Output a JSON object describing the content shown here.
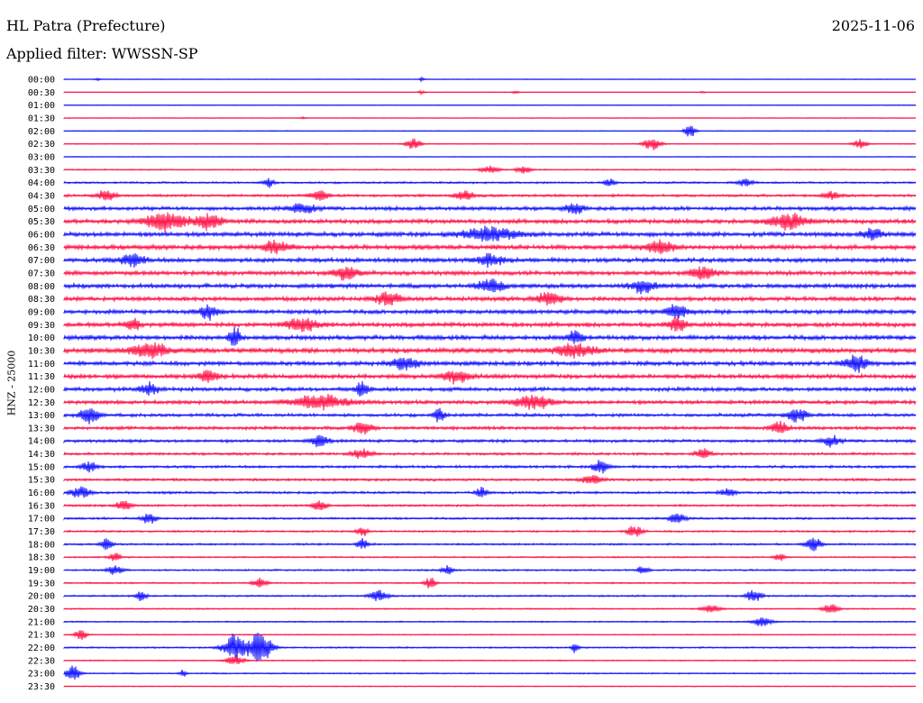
{
  "header": {
    "station": "HL Patra (Prefecture)",
    "date": "2025-11-06",
    "filter": "Applied filter: WWSSN-SP"
  },
  "chart_data": {
    "type": "line",
    "title": "HL Patra (Prefecture)",
    "ylabel": "HNZ - 25000",
    "xlabel": "",
    "colors": [
      "#1a1aff",
      "#ff1a4d"
    ],
    "rows": [
      {
        "label": "00:00",
        "color": "#1a1aff",
        "noise": 0.3,
        "events": [
          [
            0.04,
            0.4,
            3
          ],
          [
            0.42,
            0.5,
            3
          ]
        ]
      },
      {
        "label": "00:30",
        "color": "#ff1a4d",
        "noise": 0.3,
        "events": [
          [
            0.42,
            0.5,
            4
          ],
          [
            0.53,
            0.5,
            4
          ],
          [
            0.75,
            0.3,
            3
          ]
        ]
      },
      {
        "label": "01:00",
        "color": "#1a1aff",
        "noise": 0.3,
        "events": []
      },
      {
        "label": "01:30",
        "color": "#ff1a4d",
        "noise": 0.3,
        "events": [
          [
            0.28,
            0.3,
            3
          ]
        ]
      },
      {
        "label": "02:00",
        "color": "#1a1aff",
        "noise": 0.4,
        "events": [
          [
            0.735,
            2.2,
            6
          ]
        ]
      },
      {
        "label": "02:30",
        "color": "#ff1a4d",
        "noise": 0.4,
        "events": [
          [
            0.41,
            1.8,
            8
          ],
          [
            0.69,
            1.8,
            10
          ],
          [
            0.935,
            1.5,
            8
          ]
        ]
      },
      {
        "label": "03:00",
        "color": "#1a1aff",
        "noise": 0.3,
        "events": []
      },
      {
        "label": "03:30",
        "color": "#ff1a4d",
        "noise": 0.6,
        "events": [
          [
            0.5,
            1.3,
            10
          ],
          [
            0.54,
            1.3,
            8
          ]
        ]
      },
      {
        "label": "04:00",
        "color": "#1a1aff",
        "noise": 0.9,
        "events": [
          [
            0.24,
            1.4,
            6
          ],
          [
            0.64,
            1.4,
            6
          ],
          [
            0.8,
            1.2,
            8
          ]
        ]
      },
      {
        "label": "04:30",
        "color": "#ff1a4d",
        "noise": 1.2,
        "events": [
          [
            0.05,
            1.6,
            10
          ],
          [
            0.3,
            1.6,
            10
          ],
          [
            0.47,
            1.5,
            10
          ],
          [
            0.9,
            1.5,
            8
          ]
        ]
      },
      {
        "label": "05:00",
        "color": "#1a1aff",
        "noise": 1.8,
        "events": [
          [
            0.28,
            1.8,
            14
          ],
          [
            0.6,
            1.6,
            10
          ]
        ]
      },
      {
        "label": "05:30",
        "color": "#ff1a4d",
        "noise": 2.0,
        "events": [
          [
            0.12,
            3.0,
            22
          ],
          [
            0.17,
            2.5,
            14
          ],
          [
            0.85,
            2.5,
            20
          ]
        ]
      },
      {
        "label": "06:00",
        "color": "#1a1aff",
        "noise": 2.2,
        "events": [
          [
            0.5,
            2.2,
            30
          ],
          [
            0.95,
            2.0,
            10
          ]
        ]
      },
      {
        "label": "06:30",
        "color": "#ff1a4d",
        "noise": 2.2,
        "events": [
          [
            0.25,
            2.0,
            14
          ],
          [
            0.7,
            2.0,
            16
          ]
        ]
      },
      {
        "label": "07:00",
        "color": "#1a1aff",
        "noise": 2.0,
        "events": [
          [
            0.08,
            2.0,
            14
          ],
          [
            0.5,
            1.8,
            14
          ]
        ]
      },
      {
        "label": "07:30",
        "color": "#ff1a4d",
        "noise": 2.0,
        "events": [
          [
            0.33,
            2.0,
            14
          ],
          [
            0.75,
            2.0,
            14
          ]
        ]
      },
      {
        "label": "08:00",
        "color": "#1a1aff",
        "noise": 2.0,
        "events": [
          [
            0.5,
            2.0,
            16
          ],
          [
            0.68,
            2.0,
            14
          ]
        ]
      },
      {
        "label": "08:30",
        "color": "#ff1a4d",
        "noise": 2.0,
        "events": [
          [
            0.38,
            2.0,
            14
          ],
          [
            0.57,
            2.2,
            14
          ]
        ]
      },
      {
        "label": "09:00",
        "color": "#1a1aff",
        "noise": 2.0,
        "events": [
          [
            0.17,
            2.2,
            10
          ],
          [
            0.72,
            2.0,
            12
          ]
        ]
      },
      {
        "label": "09:30",
        "color": "#ff1a4d",
        "noise": 2.0,
        "events": [
          [
            0.08,
            2.0,
            8
          ],
          [
            0.28,
            2.2,
            16
          ],
          [
            0.72,
            2.2,
            10
          ]
        ]
      },
      {
        "label": "10:00",
        "color": "#1a1aff",
        "noise": 2.2,
        "events": [
          [
            0.2,
            3.5,
            6
          ],
          [
            0.6,
            2.5,
            8
          ]
        ]
      },
      {
        "label": "10:30",
        "color": "#ff1a4d",
        "noise": 2.4,
        "events": [
          [
            0.1,
            2.2,
            20
          ],
          [
            0.6,
            2.2,
            20
          ]
        ]
      },
      {
        "label": "11:00",
        "color": "#1a1aff",
        "noise": 2.0,
        "events": [
          [
            0.4,
            2.0,
            14
          ],
          [
            0.93,
            2.6,
            12
          ]
        ]
      },
      {
        "label": "11:30",
        "color": "#ff1a4d",
        "noise": 2.0,
        "events": [
          [
            0.17,
            2.2,
            10
          ],
          [
            0.46,
            2.0,
            14
          ]
        ]
      },
      {
        "label": "12:00",
        "color": "#1a1aff",
        "noise": 1.8,
        "events": [
          [
            0.35,
            2.8,
            6
          ],
          [
            0.1,
            2.0,
            10
          ]
        ]
      },
      {
        "label": "12:30",
        "color": "#ff1a4d",
        "noise": 1.8,
        "events": [
          [
            0.3,
            2.2,
            30
          ],
          [
            0.55,
            2.0,
            20
          ]
        ]
      },
      {
        "label": "13:00",
        "color": "#1a1aff",
        "noise": 1.5,
        "events": [
          [
            0.03,
            2.8,
            10
          ],
          [
            0.44,
            2.5,
            6
          ],
          [
            0.86,
            2.5,
            10
          ]
        ]
      },
      {
        "label": "13:30",
        "color": "#ff1a4d",
        "noise": 1.5,
        "events": [
          [
            0.35,
            2.2,
            10
          ],
          [
            0.84,
            2.4,
            8
          ]
        ]
      },
      {
        "label": "14:00",
        "color": "#1a1aff",
        "noise": 1.4,
        "events": [
          [
            0.3,
            1.8,
            10
          ],
          [
            0.9,
            1.8,
            10
          ]
        ]
      },
      {
        "label": "14:30",
        "color": "#ff1a4d",
        "noise": 1.2,
        "events": [
          [
            0.35,
            1.8,
            10
          ],
          [
            0.75,
            1.6,
            8
          ]
        ]
      },
      {
        "label": "15:00",
        "color": "#1a1aff",
        "noise": 1.2,
        "events": [
          [
            0.03,
            1.8,
            8
          ],
          [
            0.63,
            2.2,
            8
          ]
        ]
      },
      {
        "label": "15:30",
        "color": "#ff1a4d",
        "noise": 1.2,
        "events": [
          [
            0.62,
            1.8,
            10
          ]
        ]
      },
      {
        "label": "16:00",
        "color": "#1a1aff",
        "noise": 1.1,
        "events": [
          [
            0.02,
            2.0,
            10
          ],
          [
            0.49,
            1.8,
            6
          ],
          [
            0.78,
            1.5,
            8
          ]
        ]
      },
      {
        "label": "16:30",
        "color": "#ff1a4d",
        "noise": 1.0,
        "events": [
          [
            0.07,
            1.8,
            8
          ],
          [
            0.3,
            1.6,
            8
          ]
        ]
      },
      {
        "label": "17:00",
        "color": "#1a1aff",
        "noise": 1.0,
        "events": [
          [
            0.1,
            1.8,
            8
          ],
          [
            0.72,
            1.8,
            8
          ]
        ]
      },
      {
        "label": "17:30",
        "color": "#ff1a4d",
        "noise": 0.9,
        "events": [
          [
            0.35,
            1.8,
            6
          ],
          [
            0.67,
            2.0,
            8
          ]
        ]
      },
      {
        "label": "18:00",
        "color": "#1a1aff",
        "noise": 0.9,
        "events": [
          [
            0.05,
            2.0,
            6
          ],
          [
            0.35,
            1.8,
            6
          ],
          [
            0.88,
            2.3,
            8
          ]
        ]
      },
      {
        "label": "18:30",
        "color": "#ff1a4d",
        "noise": 0.7,
        "events": [
          [
            0.06,
            1.6,
            6
          ],
          [
            0.84,
            1.2,
            6
          ]
        ]
      },
      {
        "label": "19:00",
        "color": "#1a1aff",
        "noise": 0.8,
        "events": [
          [
            0.06,
            1.6,
            8
          ],
          [
            0.45,
            1.4,
            6
          ],
          [
            0.68,
            1.4,
            6
          ]
        ]
      },
      {
        "label": "19:30",
        "color": "#ff1a4d",
        "noise": 0.7,
        "events": [
          [
            0.23,
            1.5,
            8
          ],
          [
            0.43,
            1.8,
            6
          ]
        ]
      },
      {
        "label": "20:00",
        "color": "#1a1aff",
        "noise": 0.8,
        "events": [
          [
            0.09,
            1.6,
            6
          ],
          [
            0.37,
            1.6,
            10
          ],
          [
            0.81,
            2.0,
            8
          ]
        ]
      },
      {
        "label": "20:30",
        "color": "#ff1a4d",
        "noise": 0.6,
        "events": [
          [
            0.76,
            1.4,
            10
          ],
          [
            0.9,
            2.0,
            8
          ]
        ]
      },
      {
        "label": "21:00",
        "color": "#1a1aff",
        "noise": 0.6,
        "events": [
          [
            0.82,
            1.6,
            10
          ]
        ]
      },
      {
        "label": "21:30",
        "color": "#ff1a4d",
        "noise": 0.5,
        "events": [
          [
            0.02,
            2.0,
            6
          ]
        ]
      },
      {
        "label": "22:00",
        "color": "#1a1aff",
        "noise": 0.7,
        "events": [
          [
            0.2,
            4.5,
            12
          ],
          [
            0.23,
            5.5,
            12
          ],
          [
            0.6,
            1.5,
            4
          ]
        ]
      },
      {
        "label": "22:30",
        "color": "#ff1a4d",
        "noise": 0.5,
        "events": [
          [
            0.2,
            1.6,
            10
          ]
        ]
      },
      {
        "label": "23:00",
        "color": "#1a1aff",
        "noise": 0.6,
        "events": [
          [
            0.01,
            2.5,
            8
          ],
          [
            0.14,
            1.2,
            4
          ]
        ]
      },
      {
        "label": "23:30",
        "color": "#ff1a4d",
        "noise": 0.4,
        "events": []
      }
    ]
  }
}
